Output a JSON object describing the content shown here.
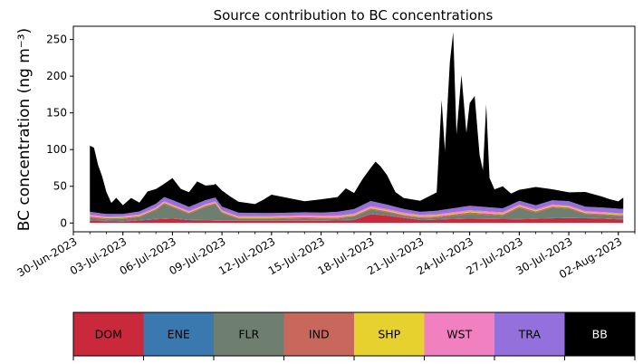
{
  "chart_data": {
    "type": "area",
    "stacked": true,
    "title": "Source contribution to BC concentrations",
    "ylabel": "BC concentration (ng m⁻³)",
    "xlabel": "",
    "x_type": "date",
    "xlim": [
      "2023-06-30",
      "2023-08-03"
    ],
    "ylim": [
      -12,
      268
    ],
    "yticks": [
      0,
      50,
      100,
      150,
      200,
      250
    ],
    "xtick_dates": [
      "2023-06-30",
      "2023-07-03",
      "2023-07-06",
      "2023-07-09",
      "2023-07-12",
      "2023-07-15",
      "2023-07-18",
      "2023-07-21",
      "2023-07-24",
      "2023-07-27",
      "2023-07-30",
      "2023-08-02"
    ],
    "xtick_labels": [
      "30-Jun-2023",
      "03-Jul-2023",
      "06-Jul-2023",
      "09-Jul-2023",
      "12-Jul-2023",
      "15-Jul-2023",
      "18-Jul-2023",
      "21-Jul-2023",
      "24-Jul-2023",
      "27-Jul-2023",
      "30-Jul-2023",
      "02-Aug-2023"
    ],
    "grid": false,
    "legend": {
      "placement": "bottom colorbar",
      "items": [
        {
          "name": "DOM",
          "color": "#c9293a"
        },
        {
          "name": "ENE",
          "color": "#3a78b0"
        },
        {
          "name": "FLR",
          "color": "#6e7f6f"
        },
        {
          "name": "IND",
          "color": "#c8675b"
        },
        {
          "name": "SHP",
          "color": "#e6d12e"
        },
        {
          "name": "WST",
          "color": "#f080c0"
        },
        {
          "name": "TRA",
          "color": "#9370db"
        },
        {
          "name": "BB",
          "color": "#000000"
        }
      ]
    },
    "series": [
      {
        "name": "DOM",
        "color": "#c9293a",
        "points": [
          [
            "2023-07-01",
            3
          ],
          [
            "2023-07-03",
            2
          ],
          [
            "2023-07-05",
            5
          ],
          [
            "2023-07-06",
            6
          ],
          [
            "2023-07-07",
            4
          ],
          [
            "2023-07-09",
            3
          ],
          [
            "2023-07-12",
            3
          ],
          [
            "2023-07-15",
            3
          ],
          [
            "2023-07-17",
            4
          ],
          [
            "2023-07-18",
            12
          ],
          [
            "2023-07-19",
            10
          ],
          [
            "2023-07-21",
            4
          ],
          [
            "2023-07-24",
            6
          ],
          [
            "2023-07-27",
            5
          ],
          [
            "2023-07-30",
            7
          ],
          [
            "2023-08-01",
            6
          ],
          [
            "2023-08-02",
            5
          ]
        ]
      },
      {
        "name": "ENE",
        "color": "#3a78b0",
        "points": [
          [
            "2023-07-01",
            0.5
          ],
          [
            "2023-07-09",
            0.5
          ],
          [
            "2023-07-18",
            0.5
          ],
          [
            "2023-08-02",
            0.5
          ]
        ]
      },
      {
        "name": "FLR",
        "color": "#6e7f6f",
        "points": [
          [
            "2023-07-01",
            4
          ],
          [
            "2023-07-02",
            2
          ],
          [
            "2023-07-03",
            3
          ],
          [
            "2023-07-04",
            4
          ],
          [
            "2023-07-05",
            12
          ],
          [
            "2023-07-05.5",
            20
          ],
          [
            "2023-07-06",
            15
          ],
          [
            "2023-07-07",
            8
          ],
          [
            "2023-07-08",
            18
          ],
          [
            "2023-07-08.6",
            22
          ],
          [
            "2023-07-09",
            10
          ],
          [
            "2023-07-10",
            2
          ],
          [
            "2023-07-12",
            2
          ],
          [
            "2023-07-14",
            3
          ],
          [
            "2023-07-16",
            2
          ],
          [
            "2023-07-18",
            6
          ],
          [
            "2023-07-19",
            4
          ],
          [
            "2023-07-20",
            2
          ],
          [
            "2023-07-22",
            2
          ],
          [
            "2023-07-24",
            6
          ],
          [
            "2023-07-26",
            4
          ],
          [
            "2023-07-27",
            15
          ],
          [
            "2023-07-28",
            8
          ],
          [
            "2023-07-29",
            14
          ],
          [
            "2023-07-30",
            12
          ],
          [
            "2023-07-31",
            5
          ],
          [
            "2023-08-02",
            4
          ]
        ]
      },
      {
        "name": "IND",
        "color": "#c8675b",
        "points": [
          [
            "2023-07-01",
            1.5
          ],
          [
            "2023-07-09",
            1.5
          ],
          [
            "2023-07-18",
            1.5
          ],
          [
            "2023-07-24",
            2
          ],
          [
            "2023-08-02",
            1.5
          ]
        ]
      },
      {
        "name": "SHP",
        "color": "#e6d12e",
        "points": [
          [
            "2023-07-01",
            0.8
          ],
          [
            "2023-07-09",
            0.8
          ],
          [
            "2023-07-18",
            1
          ],
          [
            "2023-07-24",
            1
          ],
          [
            "2023-08-02",
            1
          ]
        ]
      },
      {
        "name": "WST",
        "color": "#f080c0",
        "points": [
          [
            "2023-07-01",
            1.5
          ],
          [
            "2023-07-09",
            1.5
          ],
          [
            "2023-07-18",
            2
          ],
          [
            "2023-07-24",
            2
          ],
          [
            "2023-08-02",
            1.5
          ]
        ]
      },
      {
        "name": "TRA",
        "color": "#9370db",
        "points": [
          [
            "2023-07-01",
            4
          ],
          [
            "2023-07-03",
            3
          ],
          [
            "2023-07-05",
            5
          ],
          [
            "2023-07-06",
            6
          ],
          [
            "2023-07-09",
            5
          ],
          [
            "2023-07-12",
            4
          ],
          [
            "2023-07-15",
            4
          ],
          [
            "2023-07-18",
            7
          ],
          [
            "2023-07-21",
            4
          ],
          [
            "2023-07-24",
            6
          ],
          [
            "2023-07-27",
            5
          ],
          [
            "2023-07-30",
            6
          ],
          [
            "2023-08-02",
            6
          ]
        ]
      },
      {
        "name": "BB",
        "color": "#000000",
        "points": [
          [
            "2023-07-01",
            90
          ],
          [
            "2023-07-01.25",
            88
          ],
          [
            "2023-07-01.5",
            65
          ],
          [
            "2023-07-01.75",
            50
          ],
          [
            "2023-07-02",
            30
          ],
          [
            "2023-07-02.3",
            15
          ],
          [
            "2023-07-02.6",
            22
          ],
          [
            "2023-07-03",
            12
          ],
          [
            "2023-07-03.5",
            20
          ],
          [
            "2023-07-04",
            12
          ],
          [
            "2023-07-04.5",
            22
          ],
          [
            "2023-07-05",
            20
          ],
          [
            "2023-07-05.5",
            18
          ],
          [
            "2023-07-06",
            30
          ],
          [
            "2023-07-06.5",
            20
          ],
          [
            "2023-07-07",
            20
          ],
          [
            "2023-07-07.5",
            30
          ],
          [
            "2023-07-08",
            20
          ],
          [
            "2023-07-08.5",
            18
          ],
          [
            "2023-07-09",
            22
          ],
          [
            "2023-07-09.5",
            18
          ],
          [
            "2023-07-10",
            15
          ],
          [
            "2023-07-11",
            12
          ],
          [
            "2023-07-11.5",
            18
          ],
          [
            "2023-07-12",
            25
          ],
          [
            "2023-07-13",
            20
          ],
          [
            "2023-07-14",
            15
          ],
          [
            "2023-07-15",
            18
          ],
          [
            "2023-07-16",
            20
          ],
          [
            "2023-07-16.5",
            30
          ],
          [
            "2023-07-17",
            22
          ],
          [
            "2023-07-17.5",
            35
          ],
          [
            "2023-07-18",
            45
          ],
          [
            "2023-07-18.3",
            55
          ],
          [
            "2023-07-18.6",
            50
          ],
          [
            "2023-07-19",
            40
          ],
          [
            "2023-07-19.5",
            20
          ],
          [
            "2023-07-20",
            15
          ],
          [
            "2023-07-21",
            15
          ],
          [
            "2023-07-22",
            25
          ],
          [
            "2023-07-22.3",
            150
          ],
          [
            "2023-07-22.5",
            80
          ],
          [
            "2023-07-22.8",
            200
          ],
          [
            "2023-07-23",
            240
          ],
          [
            "2023-07-23.2",
            100
          ],
          [
            "2023-07-23.5",
            180
          ],
          [
            "2023-07-23.8",
            100
          ],
          [
            "2023-07-24",
            140
          ],
          [
            "2023-07-24.3",
            150
          ],
          [
            "2023-07-24.6",
            70
          ],
          [
            "2023-07-24.8",
            50
          ],
          [
            "2023-07-25",
            140
          ],
          [
            "2023-07-25.2",
            40
          ],
          [
            "2023-07-25.5",
            25
          ],
          [
            "2023-07-26",
            30
          ],
          [
            "2023-07-26.5",
            15
          ],
          [
            "2023-07-27",
            15
          ],
          [
            "2023-07-27.5",
            20
          ],
          [
            "2023-07-28",
            25
          ],
          [
            "2023-07-29",
            15
          ],
          [
            "2023-07-30",
            12
          ],
          [
            "2023-07-31",
            20
          ],
          [
            "2023-08-01",
            15
          ],
          [
            "2023-08-01.5",
            12
          ],
          [
            "2023-08-02",
            10
          ],
          [
            "2023-08-02.3",
            15
          ]
        ]
      }
    ]
  }
}
